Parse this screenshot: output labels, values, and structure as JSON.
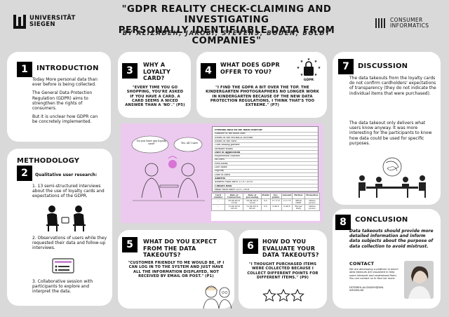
{
  "header": {
    "university_logo": "UNIVERSITÄT SIEGEN",
    "uni_line1": "UNIVERSITÄT",
    "uni_line2": "SIEGEN",
    "title_line1": "\"GDPR REALITY CHECK-CLAIMING AND INVESTIGATING",
    "title_line2": "PERSONALLY IDENTIFIABLE DATA FROM COMPANIES\"",
    "authors": "BY ALIZADEH, JAKOBI, STEVENS, BODEN, BOLDT",
    "ci_line1": "CONSUMER",
    "ci_line2": "INFORMATICS"
  },
  "intro": {
    "num": "1",
    "heading": "INTRODUCTION",
    "p1": "Today More personal data than ever before is being collected.",
    "p2": "The General Data Protection Regulation (GDPR) aims to strengthen the rights of consumers.",
    "p3": "But it is unclear how GDPR can be concretely implemented."
  },
  "methodology": {
    "num": "2",
    "heading": "METHODOLOGY",
    "sub": "Qualitative user research:",
    "m1": "1. 13 semi-structured interviews about the use of loyalty cards and expectations of the GDPR.",
    "m2": "2. Observations of users while they requested their data and follow-up interviews.",
    "m3": "3. Collaborative session with participants to explore and interpret the data."
  },
  "why": {
    "num": "3",
    "heading": "WHY A LOYALTY CARD?",
    "quote": "\"EVERY TIME YOU GO SHOPPING, YOU'RE ASKED IF YOU HAVE A CARD. A CARD SEEMS A NICED ANSWER THAN A 'NO'.\" (P5)"
  },
  "offer": {
    "num": "4",
    "heading": "WHAT DOES GDPR OFFER TO YOU?",
    "quote": "\"I FIND THE GDPR A BIT OVER THE TOP. THE KINDERGARTEN PHOTOGRAPHERS NO LONGER WORK IN KINDERGARTEN BECAUSE OF THE NEW DATA PROTECTION REGULATIONS, I THINK THAT'S TOO EXTREME.\" (P7)",
    "badge": "GDPR"
  },
  "expect": {
    "num": "5",
    "heading": "WHAT DO YOU EXPECT FROM THE DATA TAKEOUTS?",
    "quote": "\"CUSTOMER FRIENDLY TO ME WOULD BE, IF I CAN LOG IN TO THE SYSTEM AND JUST HAVE ALL THE INFORMATION DISPLAYED, NOT RECEIVED BY EMAIL OR POST.\" (P1)"
  },
  "evaluate": {
    "num": "6",
    "heading": "HOW DO YOU EVALUATE YOUR DATA TAKEOUTS?",
    "quote": "\"I THOUGHT PURCHASED ITEMS WERE COLLECTED BECAUSE I COLLECT DIFFERENT POINTS FOR DIFFERENT ITEMS.\" (P9)"
  },
  "discussion": {
    "num": "7",
    "heading": "DISCUSSION",
    "p1": "The data takeouts from the loyalty cards do not confirm cardholders' expectations of transparency (they do not indicate the individual items that were purchased).",
    "p2": "The data takeout only delivers what users know anyway. It was more interesting for the participants to know how data could be used for specific purposes."
  },
  "conclusion": {
    "num": "8",
    "heading": "CONCLUSION",
    "text": "Data takeouts should provide more detailed information and inform data subjects about the purpose of data collection to avoid mistrust.",
    "contact_heading": "CONTACT",
    "contact_text": "We are developing a platform in which data takeouts are visualized to help users interpret and understand them. You can contact us to find out more:",
    "email": "FATEMEH.ALIZADEH@UNI-SIEGEN.DE"
  },
  "figure": {
    "speech1": "Do you have any loyalty card?",
    "speech2": "Yes, all I save",
    "doc_rows": [
      "Personal data on the main collector",
      "Number of the main card",
      "Status of the PAYBACK account",
      "Status of the card",
      "Card issuing partner",
      "Member status",
      "Date of application",
      "Registration channel",
      "Mr./Mrs.",
      "First name",
      "Last name",
      "Zip/city",
      "Date of birth",
      "Address",
      "Address valid since 13.07.2018",
      "Contact data",
      "email valid since 15.07.2018"
    ],
    "table_headers": [
      "Card number",
      "Date of transaction",
      "Date of processing",
      "Points",
      "Inc. points",
      "Amount",
      "Partner",
      "Promotion"
    ],
    "table_rows": [
      [
        "...",
        "29.04.2019 13:00",
        "29.04.2019 13:43",
        "0.0",
        "17,17 €",
        "17,17 €",
        "PRGS DEPT",
        "Online promo"
      ],
      [
        "...",
        "12.04.2019 08:20",
        "12.04.2019 08:43",
        "0.0",
        "0,49 €",
        "0,49 €",
        "Burger King",
        "Online promo"
      ]
    ]
  }
}
